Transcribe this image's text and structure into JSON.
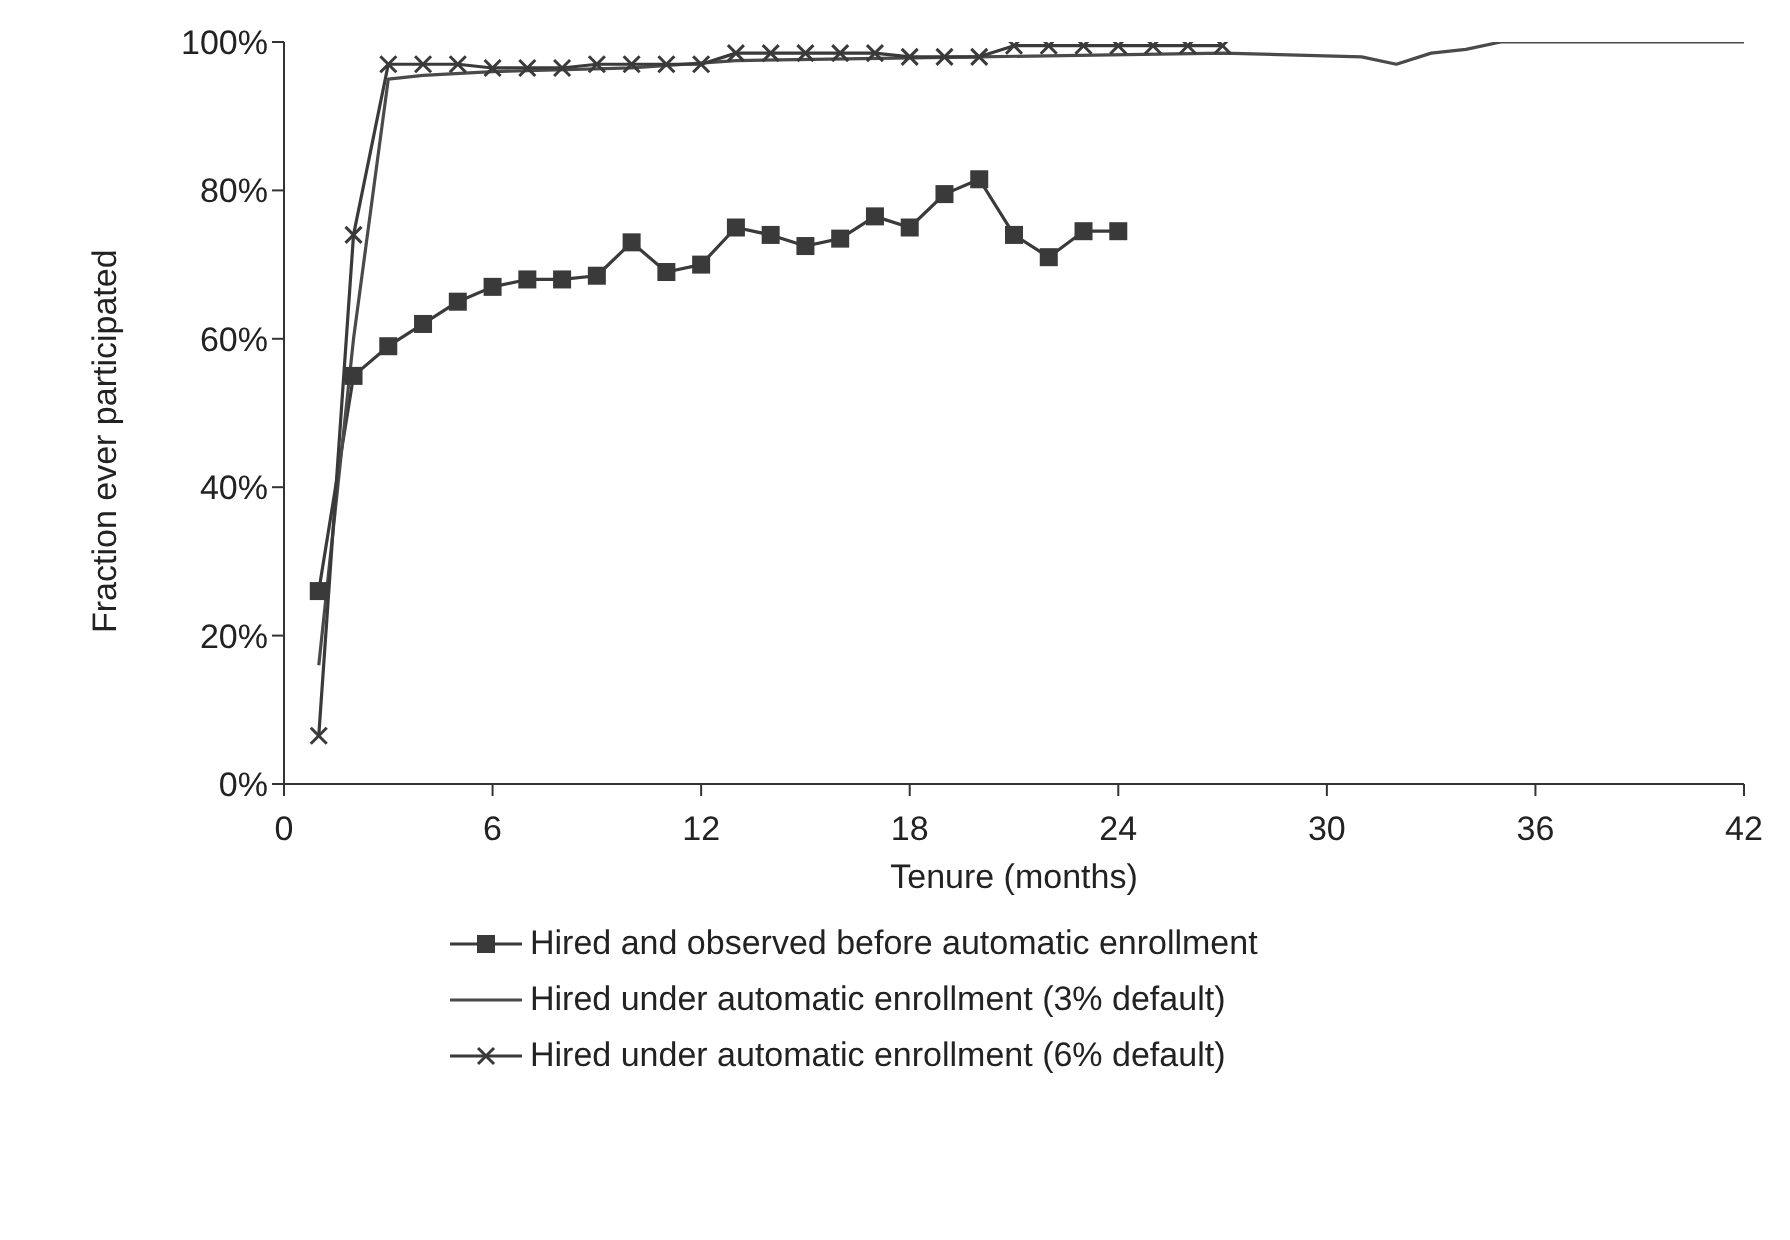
{
  "chart_data": {
    "type": "line",
    "xlabel": "Tenure (months)",
    "ylabel": "Fraction ever participated",
    "xlim": [
      0,
      42
    ],
    "xticks": [
      0,
      6,
      12,
      18,
      24,
      30,
      36,
      42
    ],
    "ylim": [
      0,
      100
    ],
    "yticks": [
      {
        "value": 0,
        "label": "0%"
      },
      {
        "value": 20,
        "label": "20%"
      },
      {
        "value": 40,
        "label": "40%"
      },
      {
        "value": 60,
        "label": "60%"
      },
      {
        "value": 80,
        "label": "80%"
      },
      {
        "value": 100,
        "label": "100%"
      }
    ],
    "legend": "bottom",
    "series": [
      {
        "name": "Hired and observed before automatic enrollment",
        "color": "#3a3a3a",
        "marker": "square",
        "x": [
          1,
          2,
          3,
          4,
          5,
          6,
          7,
          8,
          9,
          10,
          11,
          12,
          13,
          14,
          15,
          16,
          17,
          18,
          19,
          20,
          21,
          22,
          23,
          24
        ],
        "values": [
          26,
          55,
          59,
          62,
          65,
          67,
          68,
          68,
          68.5,
          73,
          69,
          70,
          75,
          74,
          72.5,
          73.5,
          76.5,
          75,
          79.5,
          81.5,
          74,
          71,
          74.5,
          74.5
        ]
      },
      {
        "name": "Hired under automatic enrollment (3% default)",
        "color": "#4a4a4a",
        "marker": "none",
        "x": [
          1,
          2,
          3,
          4,
          6,
          10,
          13,
          20,
          27,
          31,
          32,
          33,
          34,
          35,
          42
        ],
        "values": [
          16,
          60,
          95,
          95.5,
          96,
          96.5,
          97.5,
          98,
          98.5,
          98,
          97,
          98.5,
          99,
          100,
          100
        ]
      },
      {
        "name": "Hired under automatic enrollment (6% default)",
        "color": "#3a3a3a",
        "marker": "cross",
        "x": [
          1,
          2,
          3,
          4,
          5,
          6,
          7,
          8,
          9,
          10,
          11,
          12,
          13,
          14,
          15,
          16,
          17,
          18,
          19,
          20,
          21,
          22,
          23,
          24,
          25,
          26,
          27
        ],
        "values": [
          6.5,
          74,
          97,
          97,
          97,
          96.5,
          96.5,
          96.5,
          97,
          97,
          97,
          97,
          98.5,
          98.5,
          98.5,
          98.5,
          98.5,
          98,
          98,
          98,
          99.5,
          99.5,
          99.5,
          99.5,
          99.5,
          99.5,
          99.5
        ]
      }
    ]
  }
}
